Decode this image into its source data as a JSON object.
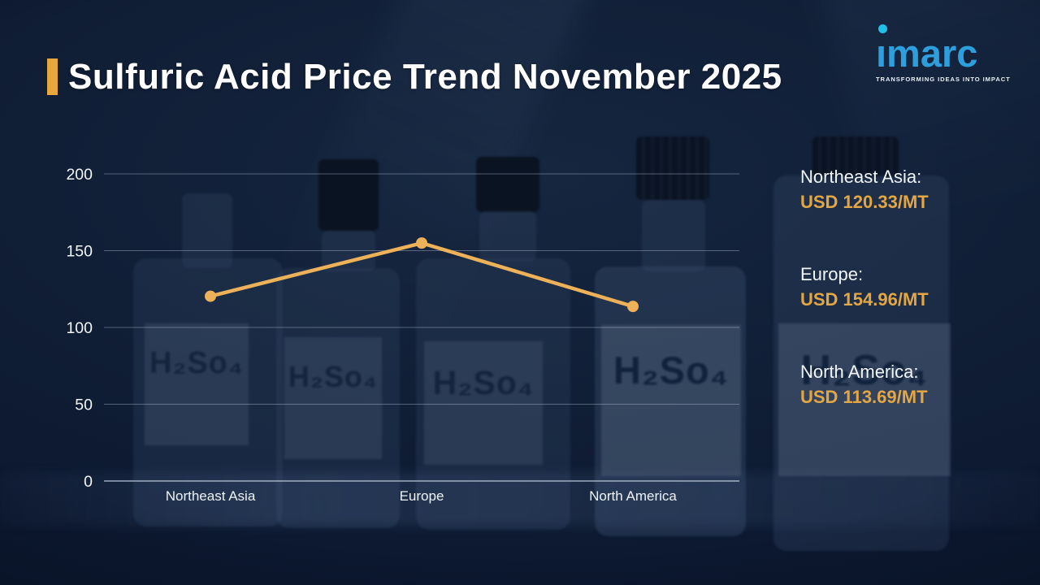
{
  "header": {
    "title": "Sulfuric Acid Price Trend November 2025"
  },
  "logo": {
    "name": "imarc",
    "tagline": "TRANSFORMING IDEAS INTO IMPACT"
  },
  "background": {
    "bottle_label": "H₂So₄"
  },
  "colors": {
    "accent_gold": "#E8A63C",
    "line_gold": "#EDB15A",
    "value_gold": "#E2A644",
    "logo_blue": "#2D9FDC",
    "logo_dot_cyan": "#1FC0E9",
    "background_navy": "#0E1B31",
    "grid_line": "rgba(198,210,228,0.38)",
    "axis_line": "rgba(205,216,232,0.75)"
  },
  "chart_data": {
    "type": "line",
    "title": "Sulfuric Acid Price Trend November 2025",
    "categories": [
      "Northeast Asia",
      "Europe",
      "North America"
    ],
    "values": [
      120.33,
      154.96,
      113.69
    ],
    "unit": "USD/MT",
    "xlabel": "",
    "ylabel": "",
    "ylim": [
      0,
      200
    ],
    "yticks": [
      0,
      50,
      100,
      150,
      200
    ],
    "grid": true,
    "legend_position": "right"
  },
  "legend": {
    "items": [
      {
        "label": "Northeast Asia:",
        "value": "USD 120.33/MT"
      },
      {
        "label": "Europe:",
        "value": "USD 154.96/MT"
      },
      {
        "label": "North America:",
        "value": "USD 113.69/MT"
      }
    ]
  }
}
